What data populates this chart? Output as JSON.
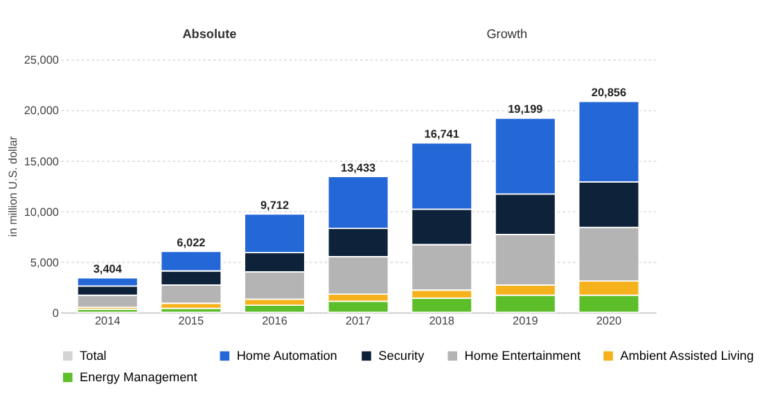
{
  "chart_data": {
    "type": "bar",
    "stacked": true,
    "categories": [
      "2014",
      "2015",
      "2016",
      "2017",
      "2018",
      "2019",
      "2020"
    ],
    "ylabel": "in million U.S. dollar",
    "ylim": [
      0,
      25000
    ],
    "yticks": [
      {
        "value": 0,
        "label": "0"
      },
      {
        "value": 5000,
        "label": "5,000"
      },
      {
        "value": 10000,
        "label": "10,000"
      },
      {
        "value": 15000,
        "label": "15,000"
      },
      {
        "value": 20000,
        "label": "20,000"
      },
      {
        "value": 25000,
        "label": "25,000"
      }
    ],
    "grid": "y",
    "legend": "bottom",
    "series": [
      {
        "name": "Energy Management",
        "color": "#5cbf2a",
        "values": [
          300,
          400,
          700,
          1100,
          1400,
          1700,
          1700
        ]
      },
      {
        "name": "Ambient Assisted Living",
        "color": "#f5b21d",
        "values": [
          200,
          500,
          600,
          700,
          800,
          1000,
          1400
        ]
      },
      {
        "name": "Home Entertainment",
        "color": "#b4b4b4",
        "values": [
          1200,
          1800,
          2700,
          3700,
          4500,
          5000,
          5300
        ]
      },
      {
        "name": "Security",
        "color": "#0e2239",
        "values": [
          900,
          1400,
          1900,
          2800,
          3500,
          4000,
          4500
        ]
      },
      {
        "name": "Home Automation",
        "color": "#2467d6",
        "values": [
          804,
          1922,
          3812,
          5133,
          6541,
          7499,
          7956
        ]
      },
      {
        "name": "Total",
        "color": "#d4d4d4",
        "values": [
          null,
          null,
          null,
          null,
          null,
          null,
          null
        ]
      }
    ],
    "totals": [
      "3,404",
      "6,022",
      "9,712",
      "13,433",
      "16,741",
      "19,199",
      "20,856"
    ],
    "annotations": [
      "Absolute",
      "Growth"
    ]
  }
}
